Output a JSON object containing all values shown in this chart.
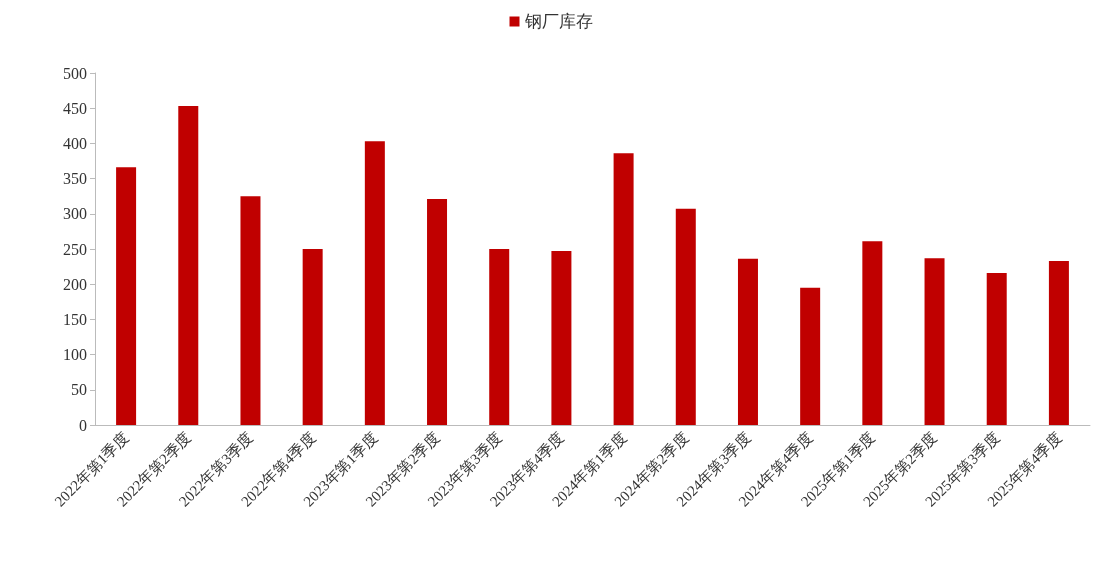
{
  "chart_data": {
    "type": "bar",
    "categories": [
      "2022年第1季度",
      "2022年第2季度",
      "2022年第3季度",
      "2022年第4季度",
      "2023年第1季度",
      "2023年第2季度",
      "2023年第3季度",
      "2023年第4季度",
      "2024年第1季度",
      "2024年第2季度",
      "2024年第3季度",
      "2024年第4季度",
      "2025年第1季度",
      "2025年第2季度",
      "2025年第3季度",
      "2025年第4季度"
    ],
    "series": [
      {
        "name": "钢厂库存",
        "color": "#c00000",
        "values": [
          366,
          453,
          325,
          250,
          403,
          321,
          250,
          247,
          386,
          307,
          236,
          195,
          261,
          237,
          216,
          233
        ]
      }
    ],
    "ylim": [
      0,
      500
    ],
    "yticks": [
      0,
      50,
      100,
      150,
      200,
      250,
      300,
      350,
      400,
      450,
      500
    ],
    "grid": false,
    "legend": "top"
  }
}
